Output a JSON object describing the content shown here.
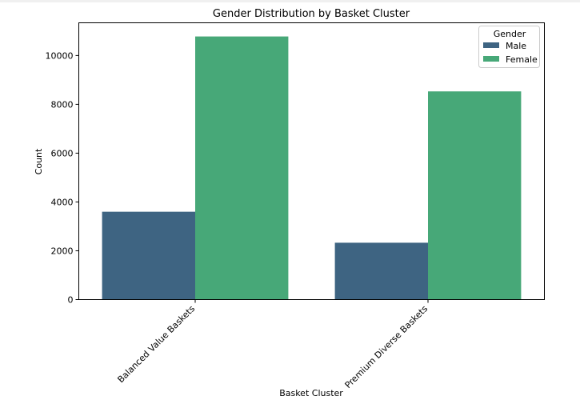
{
  "chart_data": {
    "type": "bar",
    "title": "Gender Distribution by Basket Cluster",
    "xlabel": "Basket Cluster",
    "ylabel": "Count",
    "categories": [
      "Balanced Value Baskets",
      "Premium Diverse Baskets"
    ],
    "series": [
      {
        "name": "Male",
        "values": [
          3600,
          2330
        ],
        "color": "#3e6482"
      },
      {
        "name": "Female",
        "values": [
          10780,
          8530
        ],
        "color": "#47a878"
      }
    ],
    "yticks": [
      0,
      2000,
      4000,
      6000,
      8000,
      10000
    ],
    "ylim": [
      0,
      11340
    ],
    "legend": {
      "title": "Gender",
      "position": "top-right"
    },
    "grid": false
  }
}
